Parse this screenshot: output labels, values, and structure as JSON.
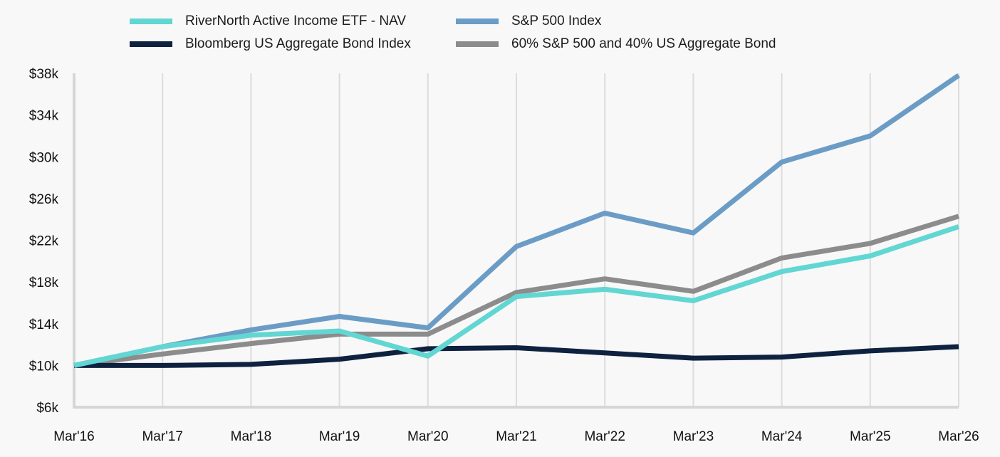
{
  "chart_data": {
    "type": "line",
    "x": [
      "Mar'16",
      "Mar'17",
      "Mar'18",
      "Mar'19",
      "Mar'20",
      "Mar'21",
      "Mar'22",
      "Mar'23",
      "Mar'24",
      "Mar'25",
      "Mar'26"
    ],
    "yticks": [
      {
        "value": 6000,
        "label": "$6k"
      },
      {
        "value": 10000,
        "label": "$10k"
      },
      {
        "value": 14000,
        "label": "$14k"
      },
      {
        "value": 18000,
        "label": "$18k"
      },
      {
        "value": 22000,
        "label": "$22k"
      },
      {
        "value": 26000,
        "label": "$26k"
      },
      {
        "value": 30000,
        "label": "$30k"
      },
      {
        "value": 34000,
        "label": "$34k"
      },
      {
        "value": 38000,
        "label": "$38k"
      }
    ],
    "ylim": [
      6000,
      38000
    ],
    "grid": "vertical",
    "legend_position": "top",
    "series": [
      {
        "name": "RiverNorth Active Income ETF - NAV",
        "color": "#62d6d2",
        "values": [
          10000,
          11800,
          12900,
          13300,
          10900,
          16600,
          17300,
          16200,
          19000,
          20500,
          23300
        ]
      },
      {
        "name": "S&P 500 Index",
        "color": "#6a9cc6",
        "values": [
          10000,
          11800,
          13400,
          14700,
          13600,
          21400,
          24600,
          22700,
          29500,
          32000,
          37800
        ]
      },
      {
        "name": "Bloomberg US Aggregate Bond Index",
        "color": "#0e2240",
        "values": [
          10000,
          10000,
          10100,
          10600,
          11600,
          11700,
          11200,
          10700,
          10800,
          11400,
          11800
        ]
      },
      {
        "name": "60% S&P 500 and 40% US Aggregate Bond",
        "color": "#8c8c8c",
        "values": [
          10000,
          11100,
          12100,
          13000,
          13000,
          17000,
          18300,
          17100,
          20300,
          21700,
          24300
        ]
      }
    ]
  }
}
